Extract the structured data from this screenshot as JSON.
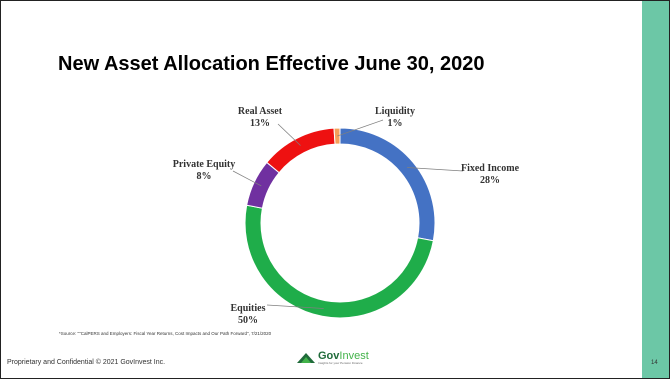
{
  "slide": {
    "title": "New Asset Allocation Effective June 30, 2020",
    "source_note": "*Source: \"\"CalPERS and Employers:  Fiscal Year Returns, Cost Impacts and Our Path Forward\", 7/21/2020",
    "footer": "Proprietary and Confidential © 2021 GovInvest Inc.",
    "logo": {
      "name_part1": "Gov",
      "name_part2": "Invest",
      "tagline": "Insights for your Pension Finance",
      "colors": [
        "#1f6b3a",
        "#43b34a"
      ]
    },
    "page_number": "14",
    "side_band_color": "#6cc7a6"
  },
  "chart_data": {
    "type": "pie",
    "style": "donut",
    "title": "New Asset Allocation Effective June 30, 2020",
    "slices": [
      {
        "label": "Fixed Income",
        "value": 28,
        "value_label": "28%",
        "color": "#4472c4"
      },
      {
        "label": "Equities",
        "value": 50,
        "value_label": "50%",
        "color": "#1fad4a"
      },
      {
        "label": "Private Equity",
        "value": 8,
        "value_label": "8%",
        "color": "#7030a0"
      },
      {
        "label": "Real Asset",
        "value": 13,
        "value_label": "13%",
        "color": "#ee1111"
      },
      {
        "label": "Liquidity",
        "value": 1,
        "value_label": "1%",
        "color": "#f5a05a"
      }
    ],
    "legend": "none",
    "label_style": "leader-lines"
  }
}
